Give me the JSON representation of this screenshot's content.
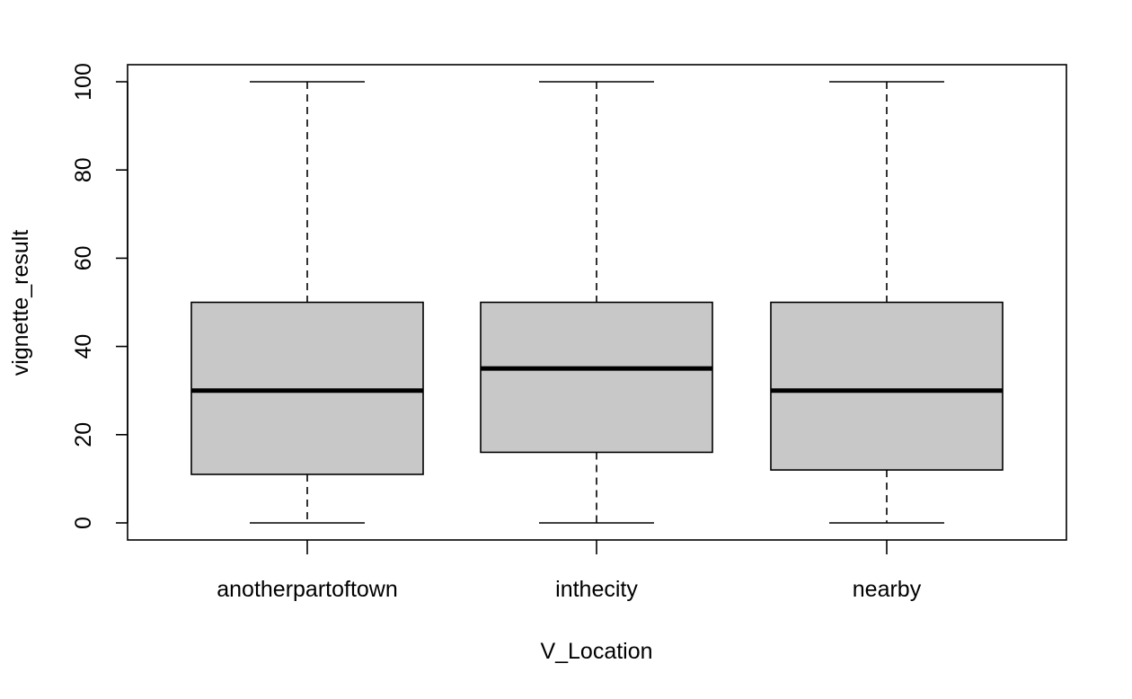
{
  "chart_data": {
    "type": "box",
    "xlabel": "V_Location",
    "ylabel": "vignette_result",
    "categories": [
      "anotherpartoftown",
      "inthecity",
      "nearby"
    ],
    "boxes": [
      {
        "category": "anotherpartoftown",
        "min": 0,
        "q1": 11,
        "median": 30,
        "q3": 50,
        "max": 100
      },
      {
        "category": "inthecity",
        "min": 0,
        "q1": 16,
        "median": 35,
        "q3": 50,
        "max": 100
      },
      {
        "category": "nearby",
        "min": 0,
        "q1": 12,
        "median": 30,
        "q3": 50,
        "max": 100
      }
    ],
    "ylim": [
      0,
      100
    ],
    "yticks": [
      0,
      20,
      40,
      60,
      80,
      100
    ],
    "ytick_labels": [
      "0",
      "20",
      "40",
      "60",
      "80",
      "100"
    ],
    "grid": false,
    "box_fill": "#c8c8c8",
    "line_color": "#000000"
  }
}
